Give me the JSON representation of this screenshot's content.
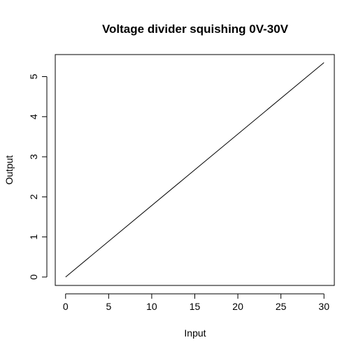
{
  "chart_data": {
    "type": "line",
    "title": "Voltage divider squishing 0V-30V",
    "xlabel": "Input",
    "ylabel": "Output",
    "xlim": [
      -1.2,
      31.2
    ],
    "ylim": [
      -0.21,
      5.55
    ],
    "x_ticks": [
      0,
      5,
      10,
      15,
      20,
      25,
      30
    ],
    "y_ticks": [
      0,
      1,
      2,
      3,
      4,
      5
    ],
    "series": [
      {
        "x": [
          0,
          30
        ],
        "y": [
          0,
          5.35
        ],
        "color": "#000000"
      }
    ],
    "grid": false,
    "legend": "none"
  }
}
